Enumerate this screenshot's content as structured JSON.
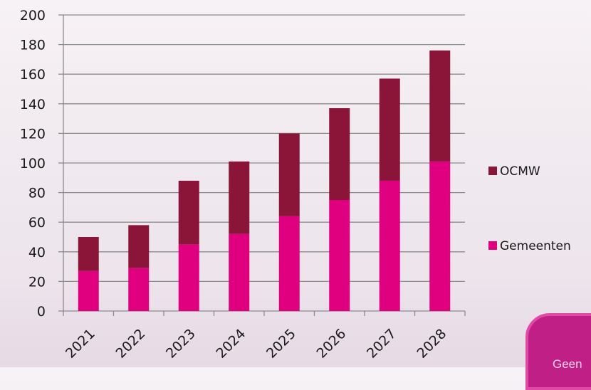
{
  "chart_data": {
    "type": "bar",
    "stacked": true,
    "categories": [
      "2021",
      "2022",
      "2023",
      "2024",
      "2025",
      "2026",
      "2027",
      "2028"
    ],
    "series": [
      {
        "name": "Gemeenten",
        "color": "#e0007f",
        "values": [
          27,
          29,
          45,
          52,
          64,
          75,
          88,
          101
        ]
      },
      {
        "name": "OCMW",
        "color": "#8a1538",
        "values": [
          23,
          29,
          43,
          49,
          56,
          62,
          69,
          75
        ]
      }
    ],
    "ylim": [
      0,
      200
    ],
    "yticks": [
      0,
      20,
      40,
      60,
      80,
      100,
      120,
      140,
      160,
      180,
      200
    ],
    "grid": true,
    "legend": "right",
    "legend_order": [
      "OCMW",
      "Gemeenten"
    ],
    "xlabel": "",
    "ylabel": "",
    "title": ""
  },
  "badge": {
    "text": "Geen"
  }
}
